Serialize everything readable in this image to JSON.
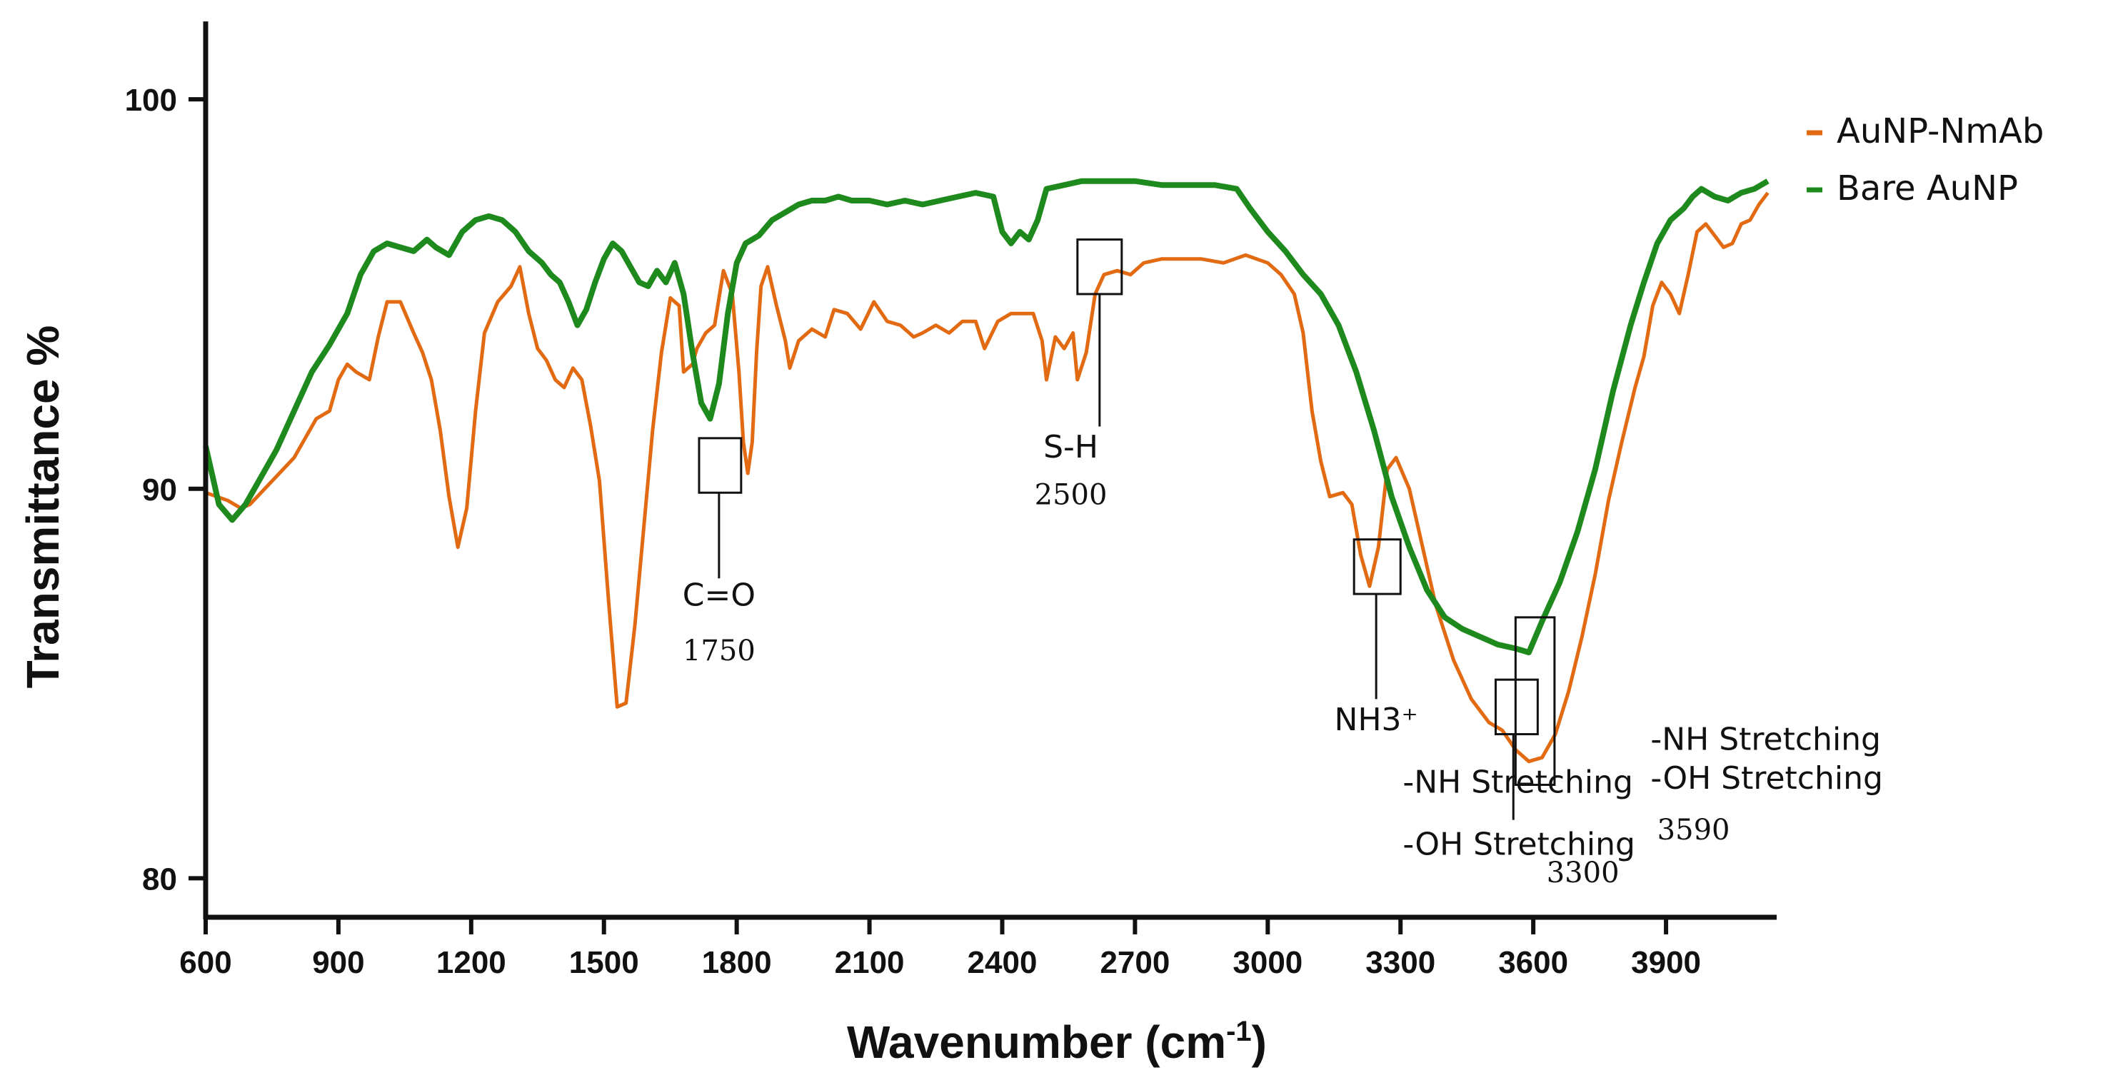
{
  "chart_data": {
    "type": "line",
    "title": "",
    "xlabel": "Wavenumber (cm",
    "xlabel_sup": "-1",
    "xlabel_close": ")",
    "ylabel": "Transmittance %",
    "xlim": [
      600,
      4150
    ],
    "ylim": [
      79,
      102
    ],
    "x_ticks": [
      600,
      900,
      1200,
      1500,
      1800,
      2100,
      2400,
      2700,
      3000,
      3300,
      3600,
      3900
    ],
    "y_ticks": [
      80,
      90,
      100
    ],
    "grid": false,
    "legend_position": "top-right",
    "series": [
      {
        "name": "AuNP-NmAb",
        "color": "#e26a12",
        "points": [
          [
            600,
            89.9
          ],
          [
            650,
            89.7
          ],
          [
            680,
            89.5
          ],
          [
            700,
            89.6
          ],
          [
            750,
            90.2
          ],
          [
            800,
            90.8
          ],
          [
            850,
            91.8
          ],
          [
            880,
            92.0
          ],
          [
            900,
            92.8
          ],
          [
            920,
            93.2
          ],
          [
            940,
            93.0
          ],
          [
            970,
            92.8
          ],
          [
            990,
            93.9
          ],
          [
            1010,
            94.8
          ],
          [
            1040,
            94.8
          ],
          [
            1070,
            94.0
          ],
          [
            1090,
            93.5
          ],
          [
            1110,
            92.8
          ],
          [
            1130,
            91.5
          ],
          [
            1150,
            89.8
          ],
          [
            1170,
            88.5
          ],
          [
            1190,
            89.5
          ],
          [
            1210,
            92.0
          ],
          [
            1230,
            94.0
          ],
          [
            1260,
            94.8
          ],
          [
            1290,
            95.2
          ],
          [
            1310,
            95.7
          ],
          [
            1330,
            94.5
          ],
          [
            1350,
            93.6
          ],
          [
            1370,
            93.3
          ],
          [
            1390,
            92.8
          ],
          [
            1410,
            92.6
          ],
          [
            1430,
            93.1
          ],
          [
            1450,
            92.8
          ],
          [
            1470,
            91.6
          ],
          [
            1490,
            90.2
          ],
          [
            1510,
            87.2
          ],
          [
            1530,
            84.4
          ],
          [
            1550,
            84.5
          ],
          [
            1570,
            86.5
          ],
          [
            1590,
            89.0
          ],
          [
            1610,
            91.5
          ],
          [
            1630,
            93.5
          ],
          [
            1650,
            94.9
          ],
          [
            1670,
            94.7
          ],
          [
            1680,
            93.0
          ],
          [
            1700,
            93.2
          ],
          [
            1710,
            93.6
          ],
          [
            1730,
            94.0
          ],
          [
            1750,
            94.2
          ],
          [
            1770,
            95.6
          ],
          [
            1790,
            95.0
          ],
          [
            1805,
            93.0
          ],
          [
            1815,
            91.2
          ],
          [
            1825,
            90.4
          ],
          [
            1835,
            91.2
          ],
          [
            1845,
            93.5
          ],
          [
            1855,
            95.2
          ],
          [
            1870,
            95.7
          ],
          [
            1890,
            94.7
          ],
          [
            1910,
            93.8
          ],
          [
            1920,
            93.1
          ],
          [
            1940,
            93.8
          ],
          [
            1970,
            94.1
          ],
          [
            2000,
            93.9
          ],
          [
            2020,
            94.6
          ],
          [
            2050,
            94.5
          ],
          [
            2080,
            94.1
          ],
          [
            2110,
            94.8
          ],
          [
            2140,
            94.3
          ],
          [
            2170,
            94.2
          ],
          [
            2200,
            93.9
          ],
          [
            2220,
            94.0
          ],
          [
            2250,
            94.2
          ],
          [
            2280,
            94.0
          ],
          [
            2310,
            94.3
          ],
          [
            2340,
            94.3
          ],
          [
            2360,
            93.6
          ],
          [
            2390,
            94.3
          ],
          [
            2420,
            94.5
          ],
          [
            2450,
            94.5
          ],
          [
            2470,
            94.5
          ],
          [
            2490,
            93.8
          ],
          [
            2500,
            92.8
          ],
          [
            2520,
            93.9
          ],
          [
            2540,
            93.6
          ],
          [
            2560,
            94.0
          ],
          [
            2570,
            92.8
          ],
          [
            2590,
            93.5
          ],
          [
            2610,
            95.0
          ],
          [
            2630,
            95.5
          ],
          [
            2660,
            95.6
          ],
          [
            2690,
            95.5
          ],
          [
            2720,
            95.8
          ],
          [
            2760,
            95.9
          ],
          [
            2800,
            95.9
          ],
          [
            2850,
            95.9
          ],
          [
            2900,
            95.8
          ],
          [
            2950,
            96.0
          ],
          [
            3000,
            95.8
          ],
          [
            3030,
            95.5
          ],
          [
            3060,
            95.0
          ],
          [
            3080,
            94.0
          ],
          [
            3100,
            92.0
          ],
          [
            3120,
            90.7
          ],
          [
            3140,
            89.8
          ],
          [
            3170,
            89.9
          ],
          [
            3190,
            89.6
          ],
          [
            3210,
            88.3
          ],
          [
            3230,
            87.5
          ],
          [
            3250,
            88.5
          ],
          [
            3270,
            90.5
          ],
          [
            3290,
            90.8
          ],
          [
            3320,
            90.0
          ],
          [
            3350,
            88.5
          ],
          [
            3380,
            87.0
          ],
          [
            3420,
            85.6
          ],
          [
            3460,
            84.6
          ],
          [
            3500,
            84.0
          ],
          [
            3530,
            83.8
          ],
          [
            3560,
            83.3
          ],
          [
            3590,
            83.0
          ],
          [
            3620,
            83.1
          ],
          [
            3650,
            83.7
          ],
          [
            3680,
            84.8
          ],
          [
            3710,
            86.2
          ],
          [
            3740,
            87.8
          ],
          [
            3770,
            89.7
          ],
          [
            3800,
            91.2
          ],
          [
            3830,
            92.6
          ],
          [
            3850,
            93.4
          ],
          [
            3870,
            94.7
          ],
          [
            3890,
            95.3
          ],
          [
            3910,
            95.0
          ],
          [
            3930,
            94.5
          ],
          [
            3950,
            95.5
          ],
          [
            3970,
            96.6
          ],
          [
            3990,
            96.8
          ],
          [
            4010,
            96.5
          ],
          [
            4030,
            96.2
          ],
          [
            4050,
            96.3
          ],
          [
            4070,
            96.8
          ],
          [
            4090,
            96.9
          ],
          [
            4110,
            97.3
          ],
          [
            4130,
            97.6
          ]
        ]
      },
      {
        "name": "Bare AuNP",
        "color": "#1e8a1e",
        "points": [
          [
            600,
            91.1
          ],
          [
            630,
            89.6
          ],
          [
            660,
            89.2
          ],
          [
            690,
            89.6
          ],
          [
            720,
            90.2
          ],
          [
            760,
            91.0
          ],
          [
            800,
            92.0
          ],
          [
            840,
            93.0
          ],
          [
            880,
            93.7
          ],
          [
            920,
            94.5
          ],
          [
            950,
            95.5
          ],
          [
            980,
            96.1
          ],
          [
            1010,
            96.3
          ],
          [
            1040,
            96.2
          ],
          [
            1070,
            96.1
          ],
          [
            1100,
            96.4
          ],
          [
            1120,
            96.2
          ],
          [
            1150,
            96.0
          ],
          [
            1180,
            96.6
          ],
          [
            1210,
            96.9
          ],
          [
            1240,
            97.0
          ],
          [
            1270,
            96.9
          ],
          [
            1300,
            96.6
          ],
          [
            1330,
            96.1
          ],
          [
            1360,
            95.8
          ],
          [
            1380,
            95.5
          ],
          [
            1400,
            95.3
          ],
          [
            1420,
            94.8
          ],
          [
            1440,
            94.2
          ],
          [
            1460,
            94.6
          ],
          [
            1480,
            95.3
          ],
          [
            1500,
            95.9
          ],
          [
            1520,
            96.3
          ],
          [
            1540,
            96.1
          ],
          [
            1560,
            95.7
          ],
          [
            1580,
            95.3
          ],
          [
            1600,
            95.2
          ],
          [
            1620,
            95.6
          ],
          [
            1640,
            95.3
          ],
          [
            1660,
            95.8
          ],
          [
            1680,
            95.0
          ],
          [
            1700,
            93.5
          ],
          [
            1720,
            92.2
          ],
          [
            1740,
            91.8
          ],
          [
            1760,
            92.7
          ],
          [
            1780,
            94.5
          ],
          [
            1800,
            95.8
          ],
          [
            1820,
            96.3
          ],
          [
            1850,
            96.5
          ],
          [
            1880,
            96.9
          ],
          [
            1910,
            97.1
          ],
          [
            1940,
            97.3
          ],
          [
            1970,
            97.4
          ],
          [
            2000,
            97.4
          ],
          [
            2030,
            97.5
          ],
          [
            2060,
            97.4
          ],
          [
            2100,
            97.4
          ],
          [
            2140,
            97.3
          ],
          [
            2180,
            97.4
          ],
          [
            2220,
            97.3
          ],
          [
            2260,
            97.4
          ],
          [
            2300,
            97.5
          ],
          [
            2340,
            97.6
          ],
          [
            2380,
            97.5
          ],
          [
            2400,
            96.6
          ],
          [
            2420,
            96.3
          ],
          [
            2440,
            96.6
          ],
          [
            2460,
            96.4
          ],
          [
            2480,
            96.9
          ],
          [
            2500,
            97.7
          ],
          [
            2540,
            97.8
          ],
          [
            2580,
            97.9
          ],
          [
            2620,
            97.9
          ],
          [
            2660,
            97.9
          ],
          [
            2700,
            97.9
          ],
          [
            2760,
            97.8
          ],
          [
            2820,
            97.8
          ],
          [
            2880,
            97.8
          ],
          [
            2930,
            97.7
          ],
          [
            2960,
            97.2
          ],
          [
            3000,
            96.6
          ],
          [
            3040,
            96.1
          ],
          [
            3080,
            95.5
          ],
          [
            3120,
            95.0
          ],
          [
            3160,
            94.2
          ],
          [
            3200,
            93.0
          ],
          [
            3240,
            91.5
          ],
          [
            3280,
            89.8
          ],
          [
            3320,
            88.5
          ],
          [
            3360,
            87.4
          ],
          [
            3400,
            86.7
          ],
          [
            3440,
            86.4
          ],
          [
            3480,
            86.2
          ],
          [
            3520,
            86.0
          ],
          [
            3560,
            85.9
          ],
          [
            3590,
            85.8
          ],
          [
            3620,
            86.6
          ],
          [
            3660,
            87.6
          ],
          [
            3700,
            88.9
          ],
          [
            3740,
            90.5
          ],
          [
            3780,
            92.5
          ],
          [
            3820,
            94.2
          ],
          [
            3850,
            95.3
          ],
          [
            3880,
            96.3
          ],
          [
            3910,
            96.9
          ],
          [
            3940,
            97.2
          ],
          [
            3960,
            97.5
          ],
          [
            3980,
            97.7
          ],
          [
            4010,
            97.5
          ],
          [
            4040,
            97.4
          ],
          [
            4070,
            97.6
          ],
          [
            4100,
            97.7
          ],
          [
            4130,
            97.9
          ]
        ]
      }
    ],
    "annotations": [
      {
        "label": "C=O",
        "number": "1750",
        "box_x": [
          1715,
          1810
        ],
        "box_y": [
          89.9,
          91.3
        ],
        "label_x": 1760,
        "label_y": 87.0,
        "number_y": 85.6,
        "line_to_y": 87.7,
        "line_x": 1760
      },
      {
        "label": "S-H",
        "number": "2500",
        "box_x": [
          2570,
          2670
        ],
        "box_y": [
          95.0,
          96.4
        ],
        "label_x": 2555,
        "label_y": 90.8,
        "number_y": 89.6,
        "line_to_y": 91.6,
        "line_x": 2620
      },
      {
        "label": "NH3⁺",
        "number": "",
        "box_x": [
          3195,
          3300
        ],
        "box_y": [
          87.3,
          88.7
        ],
        "label_x": 3245,
        "label_y": 83.8,
        "number_y": 0,
        "line_to_y": 84.6,
        "line_x": 3245
      },
      {
        "label": "-NH Stretching",
        "label2": "-OH Stretching",
        "number": "3300",
        "box_x": [
          3515,
          3610
        ],
        "box_y": [
          83.7,
          85.1
        ],
        "label_x": 3305,
        "label_y": 82.2,
        "label2_y": 80.6,
        "number_x": 3630,
        "number_y": 79.9,
        "line_to_y": 81.5,
        "line_x": 3555
      },
      {
        "label": "-NH Stretching",
        "label2": "-OH Stretching",
        "number": "3590",
        "box_x": [
          3560,
          3648
        ],
        "box_y": [
          82.4,
          86.7
        ],
        "label_x": 3865,
        "label_y": 83.3,
        "label2_y": 82.3,
        "number_x": 3880,
        "number_y": 81.0,
        "line_to_y": 0,
        "line_x": 0
      }
    ]
  }
}
